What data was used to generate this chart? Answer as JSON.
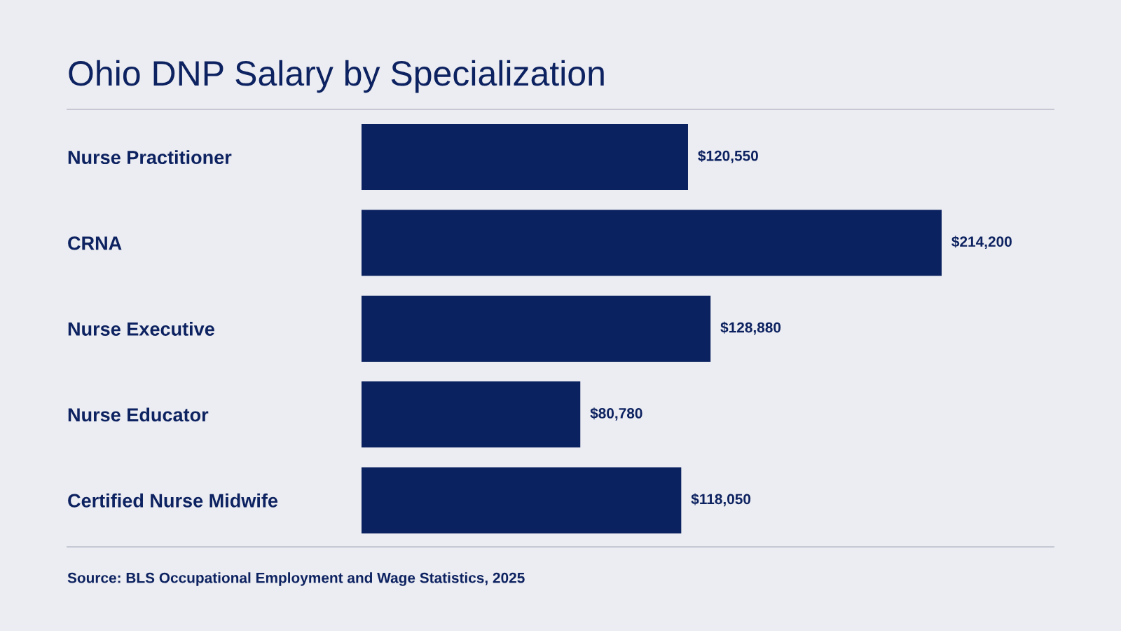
{
  "chart_data": {
    "type": "bar",
    "orientation": "horizontal",
    "title": "Ohio DNP Salary by Specialization",
    "categories": [
      "Nurse Practitioner",
      "CRNA",
      "Nurse Executive",
      "Nurse Educator",
      "Certified Nurse Midwife"
    ],
    "values": [
      120550,
      214200,
      128880,
      80780,
      118050
    ],
    "value_labels": [
      "$120,550",
      "$214,200",
      "$128,880",
      "$80,780",
      "$118,050"
    ],
    "color": "#0b2260",
    "tick_labels": "y",
    "annotations": [
      "Source: BLS Occupational Employment and Wage Statistics, 2025"
    ]
  }
}
